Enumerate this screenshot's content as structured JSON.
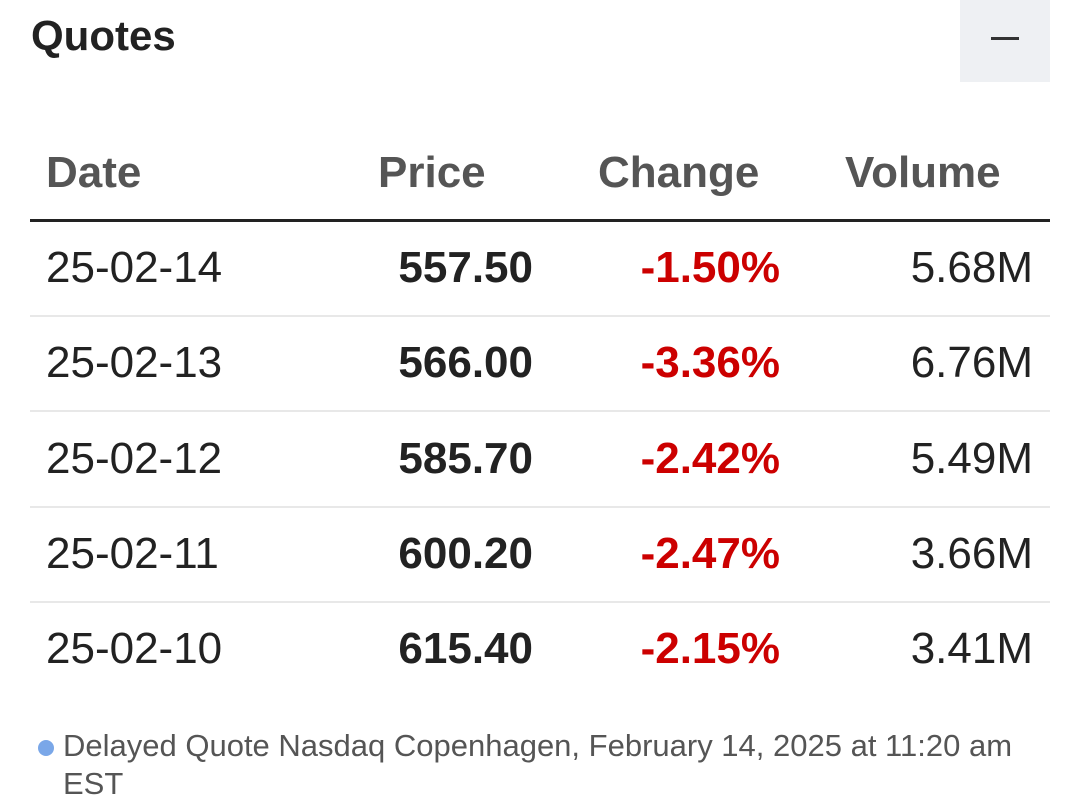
{
  "header": {
    "title": "Quotes"
  },
  "table": {
    "columns": [
      "Date",
      "Price",
      "Change",
      "Volume"
    ],
    "rows": [
      [
        "25-02-14",
        "557.50",
        "-1.50%",
        "5.68M"
      ],
      [
        "25-02-13",
        "566.00",
        "-3.36%",
        "6.76M"
      ],
      [
        "25-02-12",
        "585.70",
        "-2.42%",
        "5.49M"
      ],
      [
        "25-02-11",
        "600.20",
        "-2.47%",
        "3.66M"
      ],
      [
        "25-02-10",
        "615.40",
        "-2.15%",
        "3.41M"
      ]
    ]
  },
  "footer": {
    "text": "Delayed Quote Nasdaq Copenhagen, February 14, 2025 at 11:20 am EST"
  }
}
